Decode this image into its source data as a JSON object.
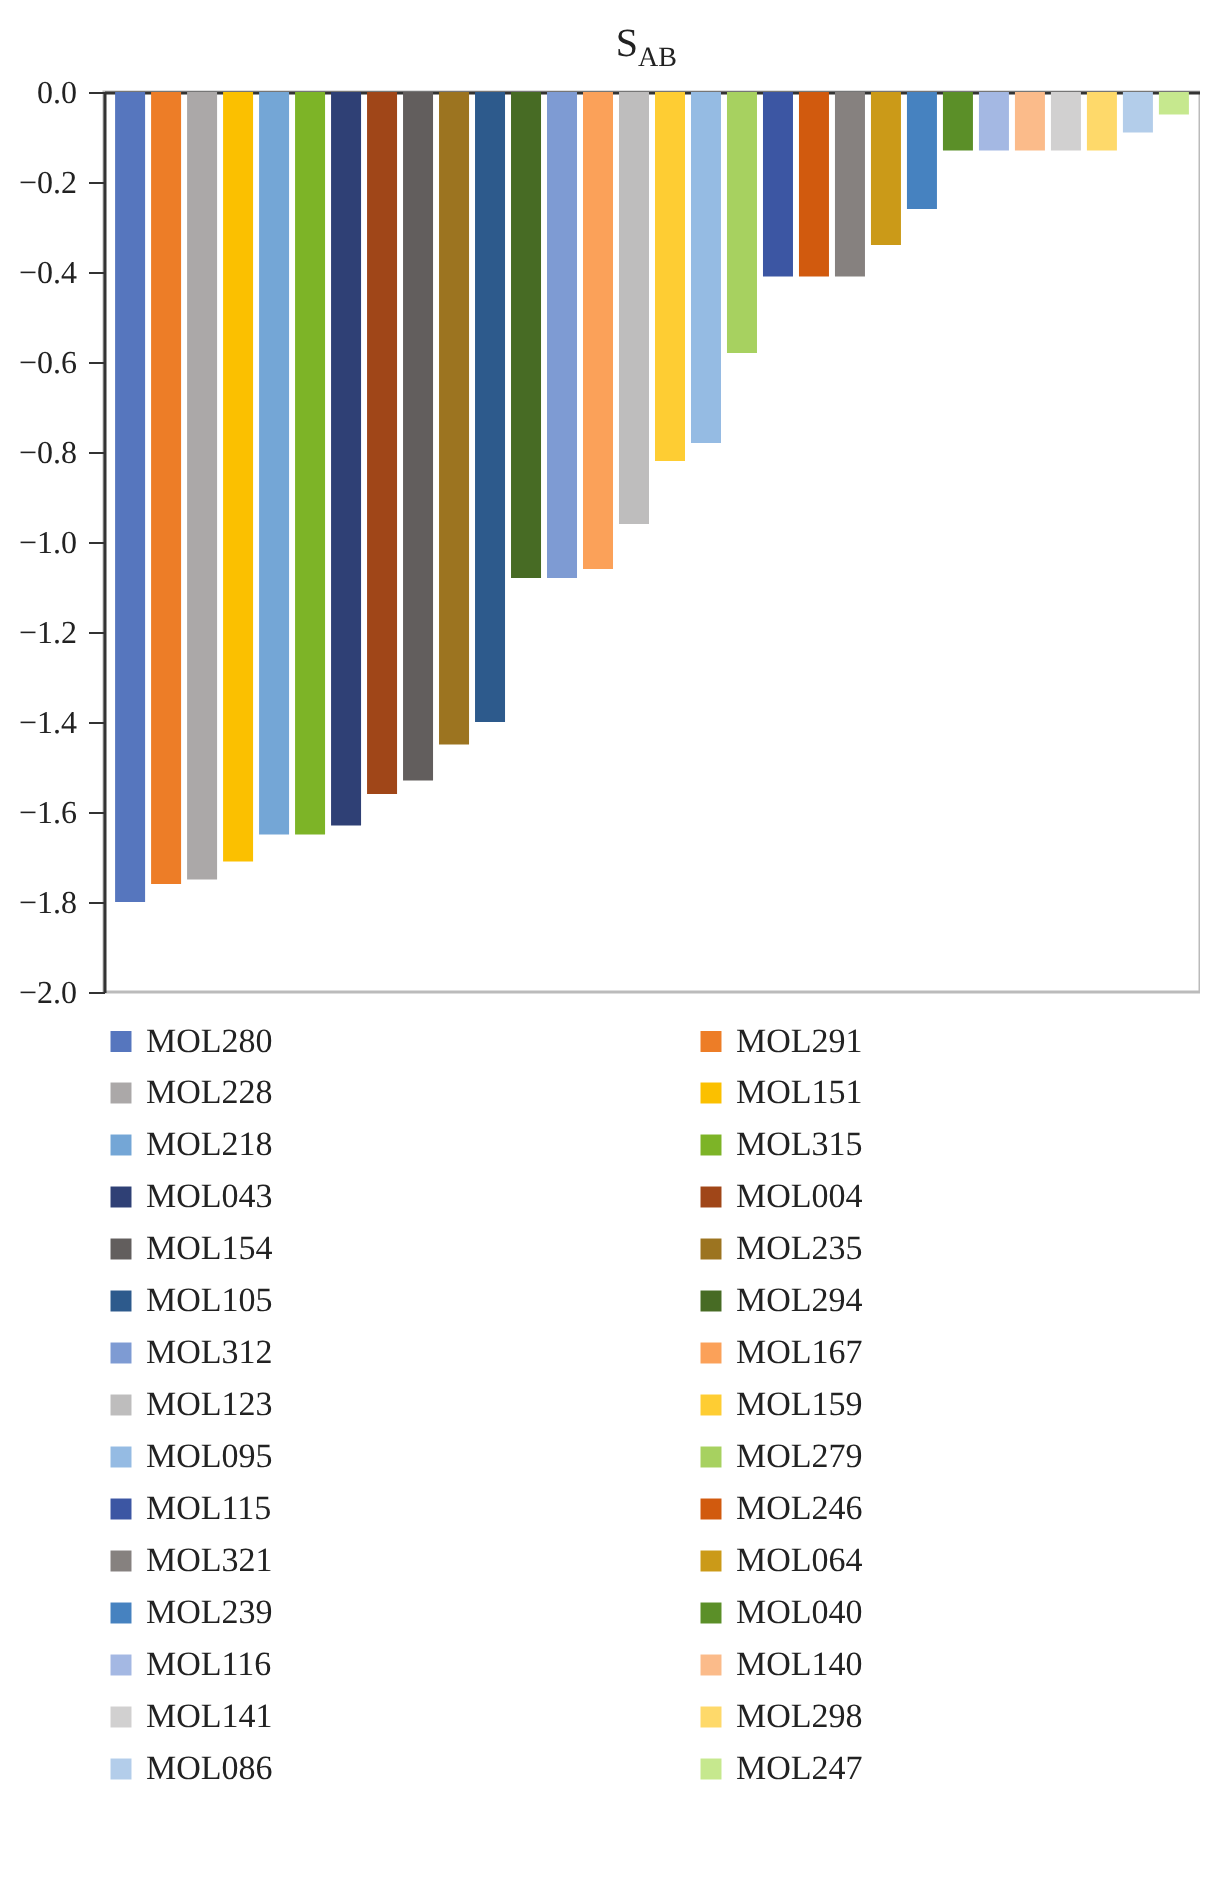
{
  "chart_data": {
    "type": "bar",
    "title": "S$_{AB}$",
    "categories": [
      null
    ],
    "series": [
      {
        "name": "MOL280",
        "color": "#5676be",
        "values": [
          -1.8
        ]
      },
      {
        "name": "MOL291",
        "color": "#ed7d27",
        "values": [
          -1.76
        ]
      },
      {
        "name": "MOL228",
        "color": "#aba8a8",
        "values": [
          -1.75
        ]
      },
      {
        "name": "MOL151",
        "color": "#fbc000",
        "values": [
          -1.71
        ]
      },
      {
        "name": "MOL218",
        "color": "#74a6d6",
        "values": [
          -1.65
        ]
      },
      {
        "name": "MOL315",
        "color": "#7db427",
        "values": [
          -1.65
        ]
      },
      {
        "name": "MOL043",
        "color": "#2f4075",
        "values": [
          -1.63
        ]
      },
      {
        "name": "MOL004",
        "color": "#a04618",
        "values": [
          -1.56
        ]
      },
      {
        "name": "MOL154",
        "color": "#625e5d",
        "values": [
          -1.53
        ]
      },
      {
        "name": "MOL235",
        "color": "#9c7420",
        "values": [
          -1.45
        ]
      },
      {
        "name": "MOL105",
        "color": "#2d5a8c",
        "values": [
          -1.4
        ]
      },
      {
        "name": "MOL294",
        "color": "#476b24",
        "values": [
          -1.08
        ]
      },
      {
        "name": "MOL312",
        "color": "#7e9bd3",
        "values": [
          -1.08
        ]
      },
      {
        "name": "MOL167",
        "color": "#fba159",
        "values": [
          -1.06
        ]
      },
      {
        "name": "MOL123",
        "color": "#bebdbd",
        "values": [
          -0.96
        ]
      },
      {
        "name": "MOL159",
        "color": "#fecd33",
        "values": [
          -0.82
        ]
      },
      {
        "name": "MOL095",
        "color": "#95bbe3",
        "values": [
          -0.78
        ]
      },
      {
        "name": "MOL279",
        "color": "#a7d160",
        "values": [
          -0.58
        ]
      },
      {
        "name": "MOL115",
        "color": "#3c56a3",
        "values": [
          -0.41
        ]
      },
      {
        "name": "MOL246",
        "color": "#d15a0e",
        "values": [
          -0.41
        ]
      },
      {
        "name": "MOL321",
        "color": "#86817f",
        "values": [
          -0.41
        ]
      },
      {
        "name": "MOL064",
        "color": "#cb9a18",
        "values": [
          -0.34
        ]
      },
      {
        "name": "MOL239",
        "color": "#4682c0",
        "values": [
          -0.26
        ]
      },
      {
        "name": "MOL040",
        "color": "#5b8f28",
        "values": [
          -0.13
        ]
      },
      {
        "name": "MOL116",
        "color": "#a4b8e3",
        "values": [
          -0.13
        ]
      },
      {
        "name": "MOL140",
        "color": "#fbbb8a",
        "values": [
          -0.13
        ]
      },
      {
        "name": "MOL141",
        "color": "#d1d0d0",
        "values": [
          -0.13
        ]
      },
      {
        "name": "MOL298",
        "color": "#fed96a",
        "values": [
          -0.13
        ]
      },
      {
        "name": "MOL086",
        "color": "#b3cdea",
        "values": [
          -0.09
        ]
      },
      {
        "name": "MOL247",
        "color": "#c6e88e",
        "values": [
          -0.05
        ]
      }
    ],
    "ylim": [
      -2.0,
      0.0
    ],
    "yticks": [
      {
        "value": 0.0,
        "label": "0.0"
      },
      {
        "value": -0.2,
        "label": "−0.2"
      },
      {
        "value": -0.4,
        "label": "−0.4"
      },
      {
        "value": -0.6,
        "label": "−0.6"
      },
      {
        "value": -0.8,
        "label": "−0.8"
      },
      {
        "value": -1.0,
        "label": "−1.0"
      },
      {
        "value": -1.2,
        "label": "−1.2"
      },
      {
        "value": -1.4,
        "label": "−1.4"
      },
      {
        "value": -1.6,
        "label": "−1.6"
      },
      {
        "value": -1.8,
        "label": "−1.8"
      },
      {
        "value": -2.0,
        "label": "−2.0"
      }
    ],
    "grid": false,
    "legend": "bottom",
    "tick_labels": "y"
  }
}
